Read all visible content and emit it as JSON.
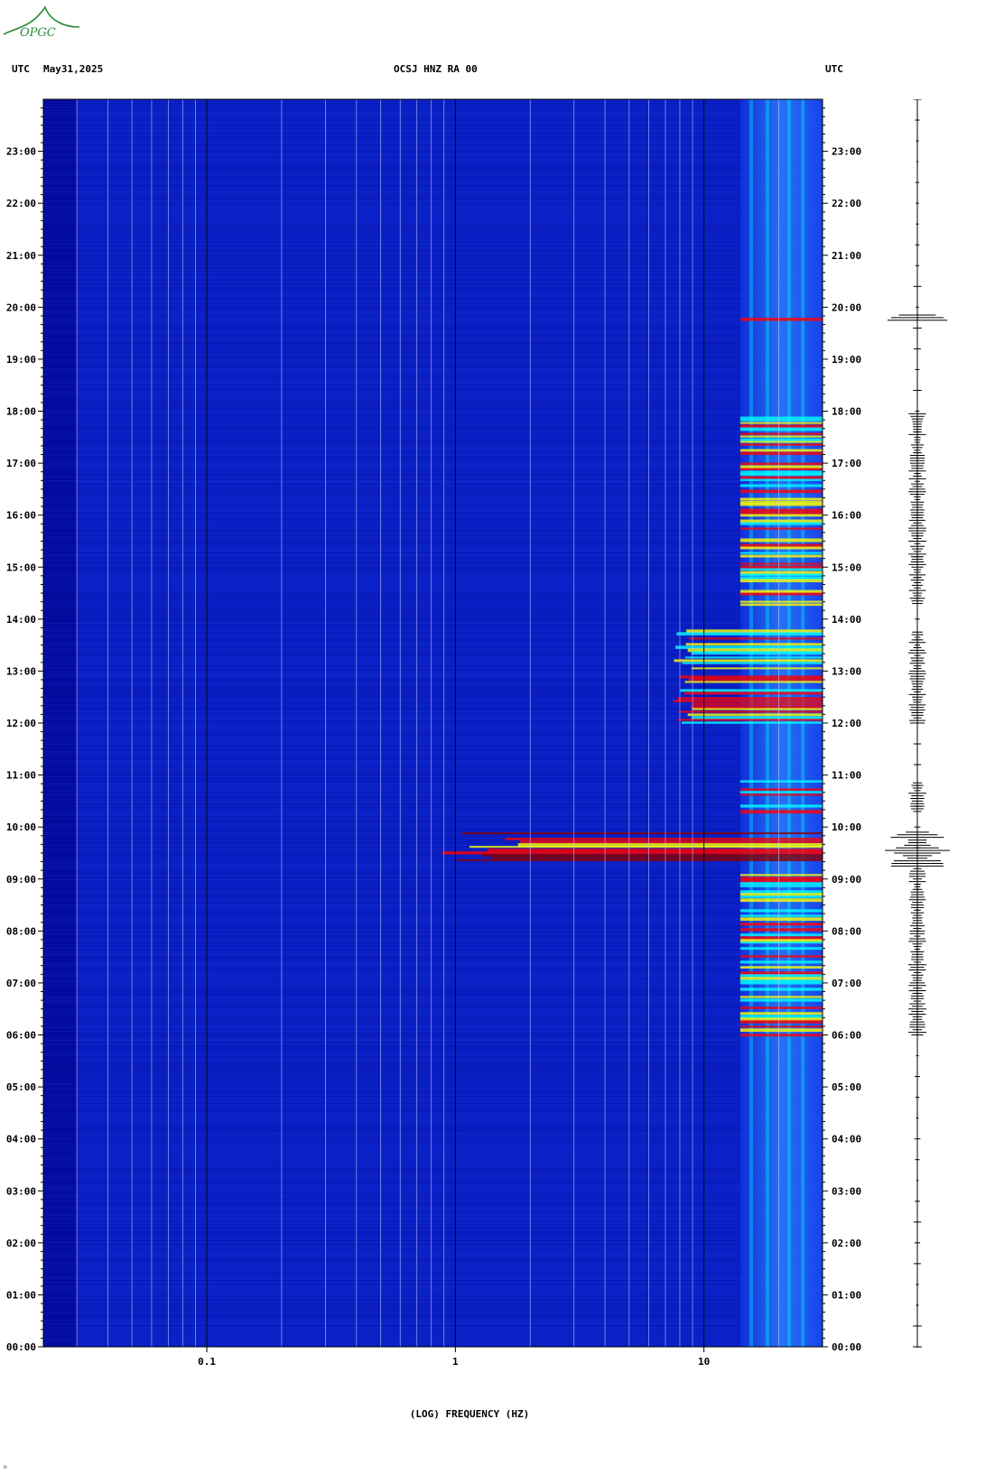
{
  "header": {
    "left_tz": "UTC",
    "date": "May31,2025",
    "station": "OCSJ HNZ RA 00",
    "right_tz": "UTC"
  },
  "logo": {
    "text": "OPGC",
    "color": "#2a8a3a"
  },
  "chart_data": {
    "type": "heatmap",
    "title": "OCSJ HNZ RA 00",
    "xlabel": "(LOG) FREQUENCY (HZ)",
    "x_scale": "log",
    "xlim_hz": [
      0.022,
      30
    ],
    "x_ticks": [
      {
        "value": 0.1,
        "label": "0.1"
      },
      {
        "value": 1,
        "label": "1"
      },
      {
        "value": 10,
        "label": "10"
      }
    ],
    "y_ticks": [
      "00:00",
      "01:00",
      "02:00",
      "03:00",
      "04:00",
      "05:00",
      "06:00",
      "07:00",
      "08:00",
      "09:00",
      "10:00",
      "11:00",
      "12:00",
      "13:00",
      "14:00",
      "15:00",
      "16:00",
      "17:00",
      "18:00",
      "19:00",
      "20:00",
      "21:00",
      "22:00",
      "23:00"
    ],
    "ylim_hours": [
      0,
      24
    ],
    "colormap": [
      "#00008b",
      "#0000ff",
      "#00ffff",
      "#ffff00",
      "#ff0000",
      "#8b0000"
    ],
    "background_color": "#0a1fc4",
    "grid": "vertical",
    "events": [
      {
        "start_h": 9.25,
        "end_h": 9.95,
        "fmin_hz": 0.8,
        "level": "very high"
      },
      {
        "start_h": 12.0,
        "end_h": 13.8,
        "fmin_hz": 7.5,
        "level": "high"
      },
      {
        "start_h": 6.0,
        "end_h": 9.2,
        "fmin_hz": 14,
        "level": "high"
      },
      {
        "start_h": 10.3,
        "end_h": 10.9,
        "fmin_hz": 14,
        "level": "high"
      },
      {
        "start_h": 14.3,
        "end_h": 18.0,
        "fmin_hz": 14,
        "level": "high"
      },
      {
        "start_h": 19.75,
        "end_h": 19.85,
        "fmin_hz": 14,
        "level": "very high"
      }
    ]
  },
  "trace": {
    "label": "seismogram"
  },
  "footer_mark": "m"
}
